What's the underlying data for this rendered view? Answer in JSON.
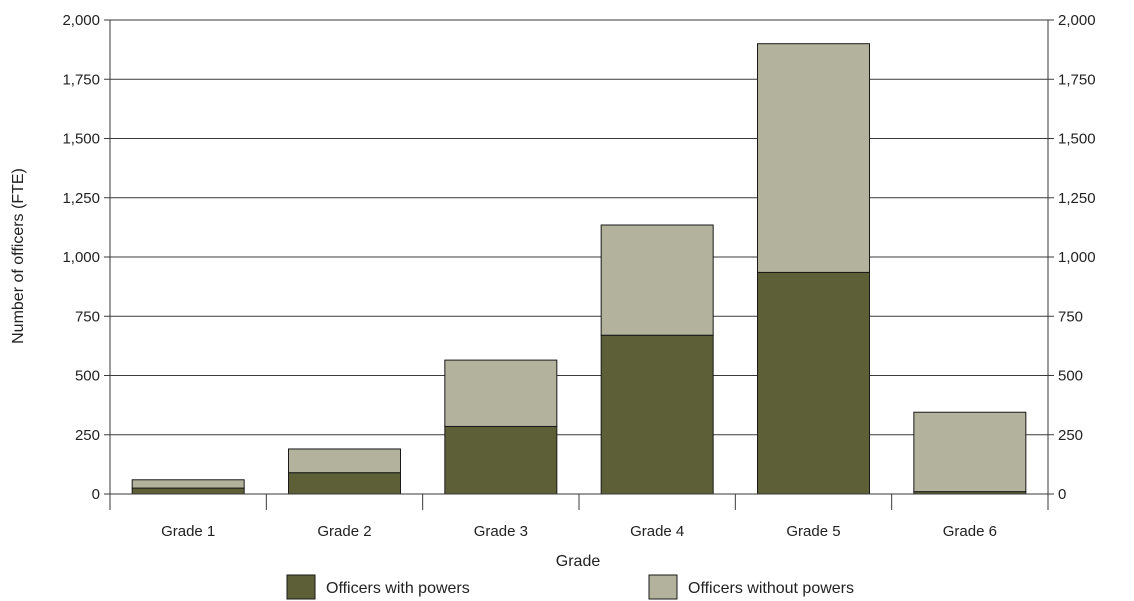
{
  "chart_data": {
    "type": "bar",
    "stacked": true,
    "xlabel": "Grade",
    "ylabel": "Number of officers (FTE)",
    "categories": [
      "Grade 1",
      "Grade 2",
      "Grade 3",
      "Grade 4",
      "Grade 5",
      "Grade 6"
    ],
    "series": [
      {
        "name": "Officers with powers",
        "values": [
          25,
          90,
          285,
          670,
          935,
          10
        ],
        "color": "#5d6036"
      },
      {
        "name": "Officers without powers",
        "values": [
          35,
          100,
          280,
          465,
          965,
          335
        ],
        "color": "#b3b29c"
      }
    ],
    "ylim": [
      0,
      2000
    ],
    "yticks": [
      0,
      250,
      500,
      750,
      1000,
      1250,
      1500,
      1750,
      2000
    ],
    "ytick_labels": [
      "0",
      "250",
      "500",
      "750",
      "1,000",
      "1,250",
      "1,500",
      "1,750",
      "2,000"
    ],
    "secondary_y_axis": true,
    "grid": true,
    "legend_position": "bottom"
  }
}
